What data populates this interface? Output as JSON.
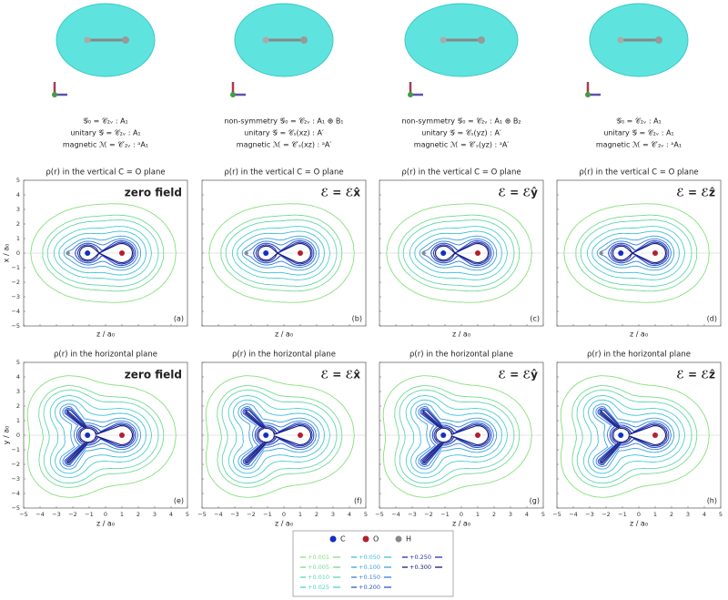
{
  "columns": [
    {
      "symmetry": [
        "𝒢₀ = 𝒞₂ᵥ : A₁",
        "unitary 𝒢 = 𝒞₂ᵥ : A₁",
        "magnetic ℳ = 𝒞′₂ᵥ : ᵃA₁"
      ],
      "field": "zero field",
      "panel_letters": [
        "(a)",
        "(e)"
      ]
    },
    {
      "symmetry": [
        "non-symmetry 𝒢₀ = 𝒞₂ᵥ : A₁ ⊕ B₁",
        "unitary 𝒢 = 𝒞ₛ(xz) : A′",
        "magnetic ℳ = 𝒞′ₛ(xz) : ᵃA′"
      ],
      "field": "ℰ = ℰx̂",
      "panel_letters": [
        "(b)",
        "(f)"
      ]
    },
    {
      "symmetry": [
        "non-symmetry 𝒢₀ = 𝒞₂ᵥ : A₁ ⊕ B₂",
        "unitary 𝒢 = 𝒞ₛ(yz) : A′",
        "magnetic ℳ = 𝒞′ₛ(yz) : ᵃA′"
      ],
      "field": "ℰ = ℰŷ",
      "panel_letters": [
        "(c)",
        "(g)"
      ]
    },
    {
      "symmetry": [
        "𝒢₀ = 𝒞₂ᵥ : A₁",
        "unitary 𝒢 = 𝒞₂ᵥ : A₁",
        "magnetic ℳ = 𝒞′₂ᵥ : ᵃA₁"
      ],
      "field": "ℰ = ℰẑ",
      "panel_letters": [
        "(d)",
        "(h)"
      ]
    }
  ],
  "row_titles": [
    "ρ(r) in the vertical C = O plane",
    "ρ(r) in the horizontal plane"
  ],
  "axes": {
    "x_label": "z / a₀",
    "y_labels": [
      "x / a₀",
      "y / a₀"
    ],
    "ticks": [
      "−5",
      "−4",
      "−3",
      "−2",
      "−1",
      "0",
      "1",
      "2",
      "3",
      "4",
      "5"
    ]
  },
  "legend": {
    "atoms": [
      "C",
      "O",
      "H"
    ],
    "levels": [
      "+0.001",
      "+0.005",
      "+0.010",
      "+0.025",
      "+0.050",
      "+0.100",
      "+0.150",
      "+0.200",
      "+0.250",
      "+0.300"
    ]
  }
}
